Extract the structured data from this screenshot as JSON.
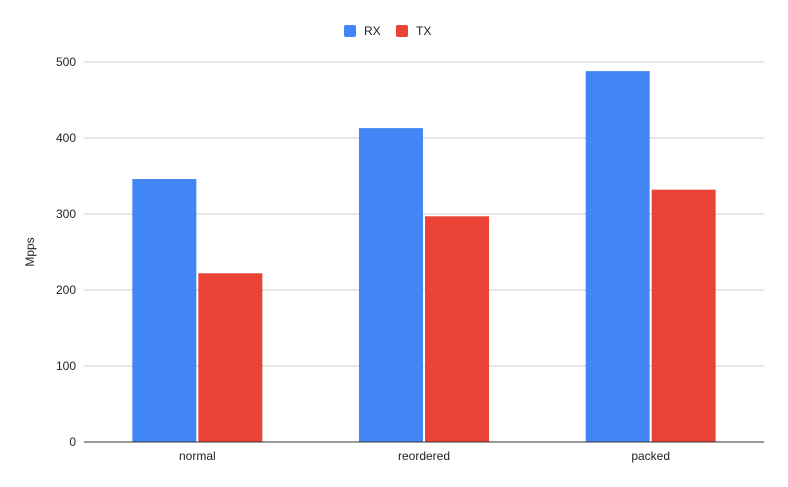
{
  "chart_data": {
    "type": "bar",
    "title": "",
    "xlabel": "",
    "ylabel": "Mpps",
    "ylim": [
      0,
      500
    ],
    "yticks": [
      0,
      100,
      200,
      300,
      400,
      500
    ],
    "grid": true,
    "legend_position": "top-center",
    "categories": [
      "normal",
      "reordered",
      "packed"
    ],
    "series": [
      {
        "name": "RX",
        "color": "#4285f4",
        "values": [
          346,
          413,
          488
        ]
      },
      {
        "name": "TX",
        "color": "#ea4335",
        "values": [
          222,
          297,
          332
        ]
      }
    ]
  }
}
